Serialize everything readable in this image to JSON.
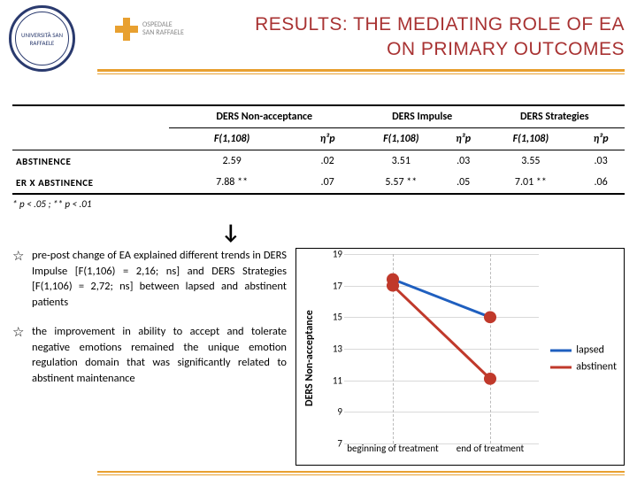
{
  "header": {
    "logo_left_text": "UNIVERSITÀ SAN RAFFAELE",
    "logo_mid_line1": "OSPEDALE",
    "logo_mid_line2": "SAN RAFFAELE",
    "title_line1": "RESULTS: THE MEDIATING ROLE OF EA",
    "title_line2": "ON PRIMARY OUTCOMES"
  },
  "table": {
    "group_headers": [
      "",
      "DERS Non-acceptance",
      "DERS Impulse",
      "DERS Strategies"
    ],
    "sub_headers": [
      "",
      "F(1,108)",
      "η²p",
      "F(1,108)",
      "η²p",
      "F(1,108)",
      "η²p"
    ],
    "rows": [
      {
        "label": "ABSTINENCE",
        "cells": [
          "2.59",
          ".02",
          "3.51",
          ".03",
          "3.55",
          ".03"
        ]
      },
      {
        "label": "ER X ABSTINENCE",
        "cells": [
          "7.88 **",
          ".07",
          "5.57 **",
          ".05",
          "7.01 **",
          ".06"
        ]
      }
    ],
    "footnote": "* p < .05 ; ** p < .01"
  },
  "bullets": [
    "pre-post change of EA explained different trends in DERS Impulse [F(1,106) = 2,16; ns] and DERS Strategies [F(1,106) = 2,72; ns] between lapsed and abstinent patients",
    "the improvement in ability to accept and tolerate negative emotions remained the unique emotion regulation domain that was significantly related to abstinent maintenance"
  ],
  "chart": {
    "type": "line",
    "ylabel": "DERS Non-acceptance",
    "ylim": [
      7,
      19
    ],
    "ytick_step": 2,
    "yticks": [
      7,
      9,
      11,
      13,
      15,
      17,
      19
    ],
    "x_categories": [
      "beginning of treatment",
      "end of treatment"
    ],
    "series": [
      {
        "name": "lapsed",
        "color": "#1f5fbf",
        "values": [
          17.4,
          15.0
        ],
        "marker_color": "#c0392b",
        "marker_r": 7,
        "line_w": 3
      },
      {
        "name": "abstinent",
        "color": "#c0392b",
        "values": [
          17.0,
          11.1
        ],
        "marker_color": "#c0392b",
        "marker_r": 7,
        "line_w": 3
      }
    ],
    "grid_color": "#d9d9d9",
    "background": "#ffffff"
  }
}
